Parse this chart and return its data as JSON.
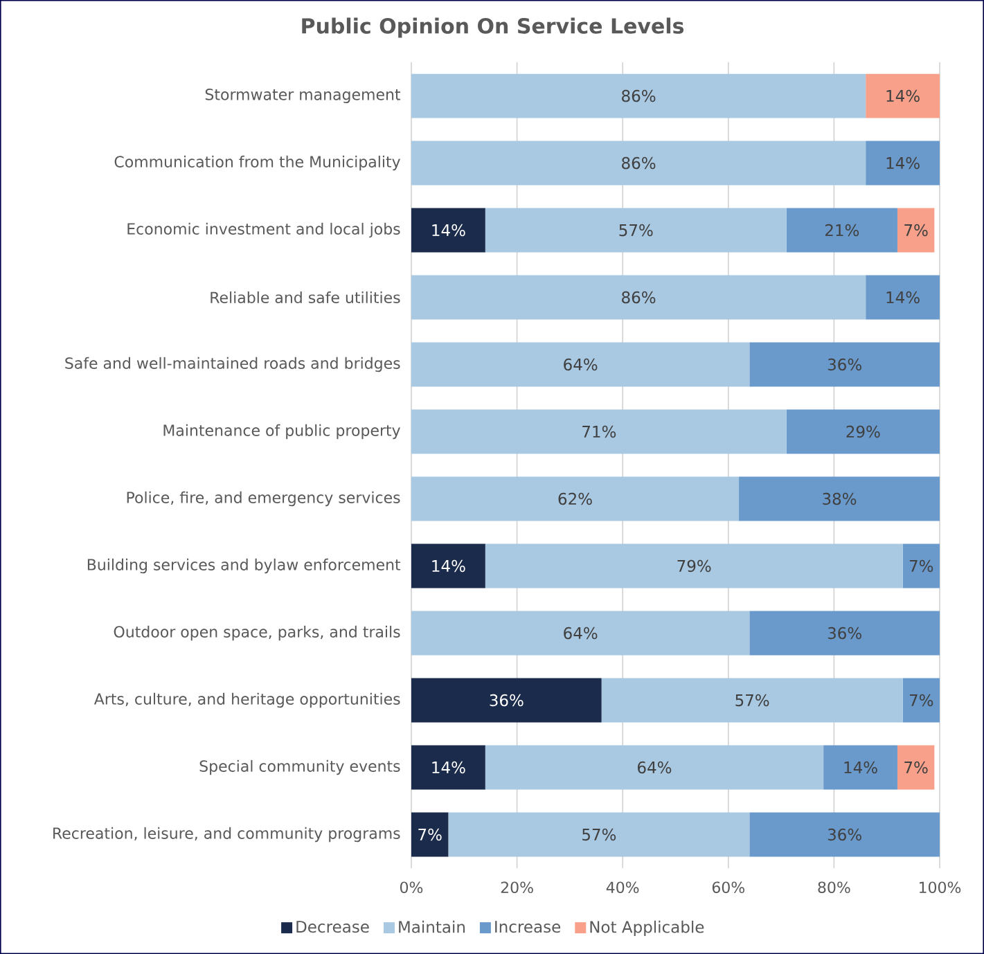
{
  "chart_data": {
    "type": "bar",
    "orientation": "horizontal",
    "stacked": true,
    "title": "Public Opinion On Service Levels",
    "categories": [
      "Stormwater management",
      "Communication from the Municipality",
      "Economic investment and local jobs",
      "Reliable and safe utilities",
      "Safe and well-maintained roads and bridges",
      "Maintenance of public property",
      "Police, fire, and emergency services",
      "Building services and bylaw enforcement",
      "Outdoor open space, parks, and trails",
      "Arts, culture, and heritage opportunities",
      "Special community events",
      "Recreation, leisure, and community programs"
    ],
    "series": [
      {
        "name": "Decrease",
        "color": "#1b2b4b",
        "values": [
          0,
          0,
          14,
          0,
          0,
          0,
          0,
          14,
          0,
          36,
          14,
          7
        ],
        "value_labels": [
          null,
          null,
          "14%",
          null,
          null,
          null,
          null,
          "14%",
          null,
          "36%",
          "14%",
          "7%"
        ]
      },
      {
        "name": "Maintain",
        "color": "#a9c8e2",
        "values": [
          86,
          86,
          57,
          86,
          64,
          71,
          62,
          79,
          64,
          57,
          64,
          57
        ],
        "value_labels": [
          "86%",
          "86%",
          "57%",
          "86%",
          "64%",
          "71%",
          "62%",
          "79%",
          "64%",
          "57%",
          "64%",
          "57%"
        ]
      },
      {
        "name": "Increase",
        "color": "#6a9acb",
        "values": [
          0,
          14,
          21,
          14,
          36,
          29,
          38,
          7,
          36,
          7,
          14,
          36
        ],
        "value_labels": [
          null,
          "14%",
          "21%",
          "14%",
          "36%",
          "29%",
          "38%",
          "7%",
          "36%",
          "7%",
          "14%",
          "36%"
        ]
      },
      {
        "name": "Not Applicable",
        "color": "#f9a08a",
        "values": [
          14,
          0,
          7,
          0,
          0,
          0,
          0,
          0,
          0,
          0,
          7,
          0
        ],
        "value_labels": [
          "14%",
          null,
          "7%",
          null,
          null,
          null,
          null,
          null,
          null,
          null,
          "7%",
          null
        ]
      }
    ],
    "xlim": [
      0,
      100
    ],
    "xticks": [
      {
        "value": 0,
        "label": "0%"
      },
      {
        "value": 20,
        "label": "20%"
      },
      {
        "value": 40,
        "label": "40%"
      },
      {
        "value": 60,
        "label": "60%"
      },
      {
        "value": 80,
        "label": "80%"
      },
      {
        "value": 100,
        "label": "100%"
      }
    ],
    "grid": "x",
    "legend": "bottom"
  }
}
